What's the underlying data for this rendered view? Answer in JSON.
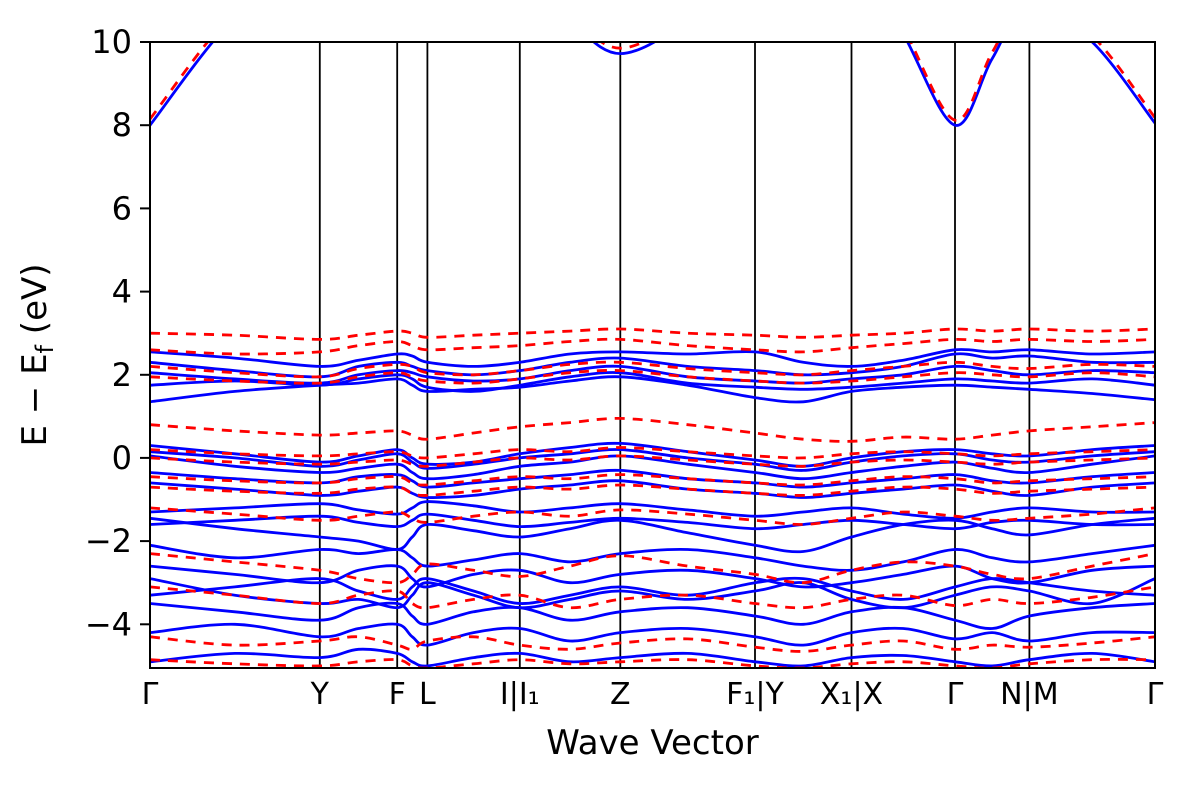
{
  "figure": {
    "background": "#ffffff"
  },
  "chart_data": {
    "type": "line",
    "title": "",
    "xlabel": "Wave Vector",
    "ylabel": "E − E_f (eV)",
    "ylabel_parts": {
      "pre": "E  −  E",
      "sub": "f",
      "post": " (eV)"
    },
    "ylim": [
      -5.05,
      10
    ],
    "grid": {
      "vertical_lines_at_xticks": true,
      "horizontal": false
    },
    "legend": null,
    "yticks": {
      "values": [
        -4,
        -2,
        0,
        2,
        4,
        6,
        8,
        10
      ],
      "labels": [
        "−4",
        "−2",
        "0",
        "2",
        "4",
        "6",
        "8",
        "10"
      ]
    },
    "xticks": [
      {
        "label": "Γ",
        "pos": 0.0
      },
      {
        "label": "Y",
        "pos": 0.169
      },
      {
        "label": "F",
        "pos": 0.246
      },
      {
        "label": "L",
        "pos": 0.276
      },
      {
        "label": "I|I₁",
        "pos": 0.368
      },
      {
        "label": "Z",
        "pos": 0.468
      },
      {
        "label": "F₁|Y",
        "pos": 0.602
      },
      {
        "label": "X₁|X",
        "pos": 0.698
      },
      {
        "label": "Γ",
        "pos": 0.801
      },
      {
        "label": "N|M",
        "pos": 0.875
      },
      {
        "label": "Γ",
        "pos": 1.0
      }
    ],
    "x_sampling": "ticks_and_midpoints",
    "series_style": {
      "solid": {
        "color": "#0000ff",
        "width": 2.8,
        "dash": null
      },
      "dashed": {
        "color": "#ff0000",
        "width": 2.8,
        "dash": "10 8"
      }
    },
    "bands_solid": [
      [
        8.0,
        10.6,
        12.0,
        12.6,
        12.8,
        12.6,
        12.2,
        11.4,
        11.6,
        10.5,
        9.72,
        10.5,
        11.8,
        12.6,
        12.4,
        10.2,
        8.0,
        9.6,
        10.9,
        10.0,
        8.05
      ],
      [
        2.55,
        2.4,
        2.2,
        2.35,
        2.5,
        2.45,
        2.3,
        2.2,
        2.3,
        2.5,
        2.55,
        2.5,
        2.55,
        2.3,
        2.2,
        2.35,
        2.6,
        2.55,
        2.6,
        2.5,
        2.55
      ],
      [
        2.3,
        2.1,
        1.95,
        2.2,
        2.3,
        2.2,
        2.1,
        2.0,
        2.1,
        2.3,
        2.4,
        2.2,
        2.1,
        2.0,
        2.05,
        2.2,
        2.5,
        2.4,
        2.45,
        2.3,
        2.3
      ],
      [
        2.05,
        1.9,
        1.8,
        2.0,
        2.1,
        2.05,
        1.95,
        1.85,
        1.9,
        2.1,
        2.2,
        1.95,
        1.85,
        1.8,
        1.9,
        2.0,
        2.2,
        2.1,
        2.0,
        2.1,
        2.05
      ],
      [
        1.75,
        1.85,
        1.75,
        1.9,
        2.0,
        1.9,
        1.7,
        1.6,
        1.75,
        1.95,
        2.05,
        1.8,
        1.7,
        1.65,
        1.7,
        1.8,
        1.9,
        1.85,
        1.8,
        1.9,
        1.75
      ],
      [
        1.35,
        1.6,
        1.75,
        1.8,
        1.9,
        1.75,
        1.6,
        1.65,
        1.7,
        1.85,
        1.95,
        1.75,
        1.45,
        1.35,
        1.6,
        1.7,
        1.75,
        1.7,
        1.65,
        1.55,
        1.4
      ],
      [
        0.3,
        0.1,
        -0.1,
        0.05,
        0.2,
        0.0,
        -0.15,
        -0.1,
        0.1,
        0.25,
        0.35,
        0.15,
        -0.05,
        -0.2,
        0.0,
        0.15,
        0.2,
        0.1,
        0.05,
        0.2,
        0.3
      ],
      [
        0.15,
        0.0,
        -0.2,
        -0.05,
        0.1,
        -0.1,
        -0.25,
        -0.15,
        0.0,
        0.1,
        0.2,
        0.0,
        -0.15,
        -0.3,
        -0.1,
        0.05,
        0.1,
        -0.05,
        -0.1,
        0.05,
        0.15
      ],
      [
        0.05,
        -0.2,
        -0.35,
        -0.25,
        -0.15,
        -0.35,
        -0.5,
        -0.4,
        -0.2,
        -0.1,
        0.05,
        -0.15,
        -0.35,
        -0.5,
        -0.35,
        -0.2,
        -0.1,
        -0.25,
        -0.35,
        -0.15,
        0.05
      ],
      [
        -0.35,
        -0.5,
        -0.6,
        -0.45,
        -0.4,
        -0.55,
        -0.7,
        -0.6,
        -0.5,
        -0.4,
        -0.3,
        -0.5,
        -0.6,
        -0.7,
        -0.6,
        -0.5,
        -0.4,
        -0.55,
        -0.6,
        -0.45,
        -0.35
      ],
      [
        -0.6,
        -0.75,
        -0.9,
        -0.8,
        -0.7,
        -0.85,
        -0.95,
        -0.9,
        -0.75,
        -0.65,
        -0.55,
        -0.75,
        -0.85,
        -0.95,
        -0.85,
        -0.75,
        -0.65,
        -0.8,
        -0.9,
        -0.7,
        -0.6
      ],
      [
        -1.3,
        -1.2,
        -1.1,
        -1.25,
        -1.35,
        -1.2,
        -1.05,
        -1.15,
        -1.3,
        -1.2,
        -1.1,
        -1.25,
        -1.4,
        -1.3,
        -1.2,
        -1.35,
        -1.45,
        -1.3,
        -1.2,
        -1.3,
        -1.3
      ],
      [
        -1.6,
        -1.5,
        -1.4,
        -1.55,
        -1.65,
        -1.5,
        -1.35,
        -1.5,
        -1.65,
        -1.55,
        -1.45,
        -1.55,
        -1.7,
        -1.6,
        -1.5,
        -1.6,
        -1.7,
        -1.55,
        -1.5,
        -1.6,
        -1.6
      ],
      [
        -1.45,
        -1.7,
        -1.9,
        -2.0,
        -2.2,
        -1.9,
        -1.6,
        -1.75,
        -1.9,
        -1.7,
        -1.5,
        -1.8,
        -2.1,
        -2.25,
        -1.9,
        -1.6,
        -1.5,
        -1.7,
        -1.85,
        -1.6,
        -1.45
      ],
      [
        -2.1,
        -2.4,
        -2.2,
        -2.3,
        -2.2,
        -2.4,
        -2.6,
        -2.45,
        -2.3,
        -2.5,
        -2.3,
        -2.2,
        -2.4,
        -2.6,
        -2.7,
        -2.5,
        -2.2,
        -2.4,
        -2.5,
        -2.3,
        -2.1
      ],
      [
        -2.6,
        -2.8,
        -3.0,
        -2.7,
        -2.6,
        -2.9,
        -3.1,
        -2.8,
        -2.7,
        -3.0,
        -2.8,
        -2.7,
        -2.9,
        -3.1,
        -3.0,
        -2.8,
        -2.6,
        -2.9,
        -3.0,
        -2.7,
        -2.6
      ],
      [
        -3.3,
        -3.1,
        -2.9,
        -3.2,
        -3.4,
        -3.1,
        -2.9,
        -3.2,
        -3.5,
        -3.3,
        -3.1,
        -3.3,
        -3.0,
        -2.9,
        -3.2,
        -3.4,
        -3.1,
        -2.9,
        -3.0,
        -3.2,
        -3.3
      ],
      [
        -2.9,
        -3.3,
        -3.5,
        -3.4,
        -3.6,
        -3.3,
        -3.0,
        -3.3,
        -3.6,
        -3.4,
        -3.2,
        -3.4,
        -3.2,
        -3.0,
        -3.4,
        -3.6,
        -3.3,
        -3.1,
        -3.2,
        -3.5,
        -2.9
      ],
      [
        -3.5,
        -3.7,
        -3.9,
        -3.6,
        -3.5,
        -3.8,
        -4.0,
        -3.7,
        -3.6,
        -3.9,
        -3.7,
        -3.6,
        -3.8,
        -4.0,
        -3.7,
        -3.6,
        -3.9,
        -4.1,
        -3.8,
        -3.6,
        -3.5
      ],
      [
        -4.2,
        -4.0,
        -4.3,
        -4.1,
        -4.0,
        -4.3,
        -4.5,
        -4.2,
        -4.1,
        -4.4,
        -4.2,
        -4.1,
        -4.3,
        -4.5,
        -4.2,
        -4.1,
        -4.35,
        -4.2,
        -4.4,
        -4.2,
        -4.2
      ],
      [
        -4.9,
        -4.7,
        -4.8,
        -4.6,
        -4.7,
        -4.9,
        -5.0,
        -4.8,
        -4.7,
        -4.9,
        -4.8,
        -4.7,
        -4.9,
        -5.0,
        -4.8,
        -4.75,
        -4.9,
        -5.0,
        -4.85,
        -4.7,
        -4.9
      ]
    ],
    "bands_dashed": [
      [
        8.15,
        10.75,
        12.15,
        12.75,
        12.95,
        12.75,
        12.35,
        11.55,
        11.75,
        10.65,
        9.85,
        10.65,
        11.95,
        12.75,
        12.55,
        10.35,
        8.12,
        9.75,
        11.05,
        10.15,
        8.18
      ],
      [
        3.0,
        2.95,
        2.85,
        2.95,
        3.05,
        3.0,
        2.9,
        2.95,
        3.0,
        3.05,
        3.1,
        3.0,
        2.95,
        2.9,
        2.95,
        3.0,
        3.1,
        3.05,
        3.1,
        3.05,
        3.1
      ],
      [
        2.6,
        2.5,
        2.55,
        2.7,
        2.8,
        2.7,
        2.6,
        2.65,
        2.7,
        2.8,
        2.85,
        2.7,
        2.6,
        2.55,
        2.65,
        2.75,
        2.85,
        2.8,
        2.85,
        2.8,
        2.85
      ],
      [
        2.2,
        2.05,
        1.95,
        2.15,
        2.25,
        2.2,
        2.05,
        2.0,
        2.1,
        2.25,
        2.3,
        2.15,
        2.05,
        2.0,
        2.1,
        2.2,
        2.3,
        2.2,
        2.15,
        2.25,
        2.2
      ],
      [
        1.95,
        1.85,
        1.8,
        1.95,
        2.05,
        1.95,
        1.85,
        1.8,
        1.9,
        2.05,
        2.1,
        1.95,
        1.85,
        1.8,
        1.85,
        1.95,
        2.05,
        2.0,
        1.95,
        2.05,
        1.95
      ],
      [
        0.8,
        0.65,
        0.55,
        0.6,
        0.65,
        0.55,
        0.45,
        0.6,
        0.75,
        0.85,
        0.95,
        0.8,
        0.6,
        0.45,
        0.4,
        0.5,
        0.45,
        0.55,
        0.65,
        0.75,
        0.85
      ],
      [
        0.2,
        0.1,
        0.05,
        0.1,
        0.15,
        0.05,
        0.0,
        0.1,
        0.2,
        0.15,
        0.25,
        0.15,
        0.05,
        0.0,
        0.1,
        0.15,
        0.1,
        0.05,
        0.1,
        0.15,
        0.2
      ],
      [
        0.0,
        -0.1,
        -0.15,
        -0.1,
        -0.05,
        -0.15,
        -0.2,
        -0.1,
        0.0,
        -0.05,
        0.05,
        -0.05,
        -0.15,
        -0.2,
        -0.1,
        -0.05,
        -0.1,
        -0.15,
        -0.1,
        -0.05,
        0.0
      ],
      [
        -0.45,
        -0.55,
        -0.6,
        -0.5,
        -0.45,
        -0.6,
        -0.65,
        -0.55,
        -0.45,
        -0.5,
        -0.4,
        -0.5,
        -0.6,
        -0.65,
        -0.55,
        -0.45,
        -0.5,
        -0.6,
        -0.55,
        -0.5,
        -0.45
      ],
      [
        -0.7,
        -0.8,
        -0.85,
        -0.75,
        -0.7,
        -0.85,
        -0.9,
        -0.8,
        -0.7,
        -0.75,
        -0.65,
        -0.75,
        -0.85,
        -0.9,
        -0.8,
        -0.7,
        -0.75,
        -0.85,
        -0.8,
        -0.75,
        -0.7
      ],
      [
        -1.2,
        -1.35,
        -1.5,
        -1.4,
        -1.3,
        -1.45,
        -1.55,
        -1.4,
        -1.3,
        -1.4,
        -1.25,
        -1.35,
        -1.5,
        -1.6,
        -1.45,
        -1.3,
        -1.4,
        -1.5,
        -1.45,
        -1.35,
        -1.2
      ],
      [
        -2.3,
        -2.5,
        -2.7,
        -2.9,
        -3.0,
        -2.8,
        -2.55,
        -2.7,
        -2.85,
        -2.6,
        -2.35,
        -2.6,
        -2.8,
        -3.0,
        -2.7,
        -2.5,
        -2.6,
        -2.8,
        -2.9,
        -2.6,
        -2.3
      ],
      [
        -3.1,
        -3.3,
        -3.5,
        -3.3,
        -3.2,
        -3.5,
        -3.6,
        -3.4,
        -3.3,
        -3.6,
        -3.4,
        -3.3,
        -3.5,
        -3.6,
        -3.4,
        -3.3,
        -3.55,
        -3.4,
        -3.5,
        -3.35,
        -3.1
      ],
      [
        -4.3,
        -4.5,
        -4.4,
        -4.3,
        -4.5,
        -4.6,
        -4.4,
        -4.3,
        -4.5,
        -4.6,
        -4.45,
        -4.35,
        -4.55,
        -4.65,
        -4.5,
        -4.4,
        -4.6,
        -4.5,
        -4.55,
        -4.45,
        -4.3
      ],
      [
        -4.85,
        -4.95,
        -5.0,
        -4.9,
        -4.85,
        -5.0,
        -5.05,
        -4.95,
        -4.85,
        -4.95,
        -4.9,
        -4.85,
        -5.0,
        -5.05,
        -4.95,
        -4.9,
        -5.0,
        -5.05,
        -4.95,
        -4.85,
        -4.85
      ]
    ]
  }
}
